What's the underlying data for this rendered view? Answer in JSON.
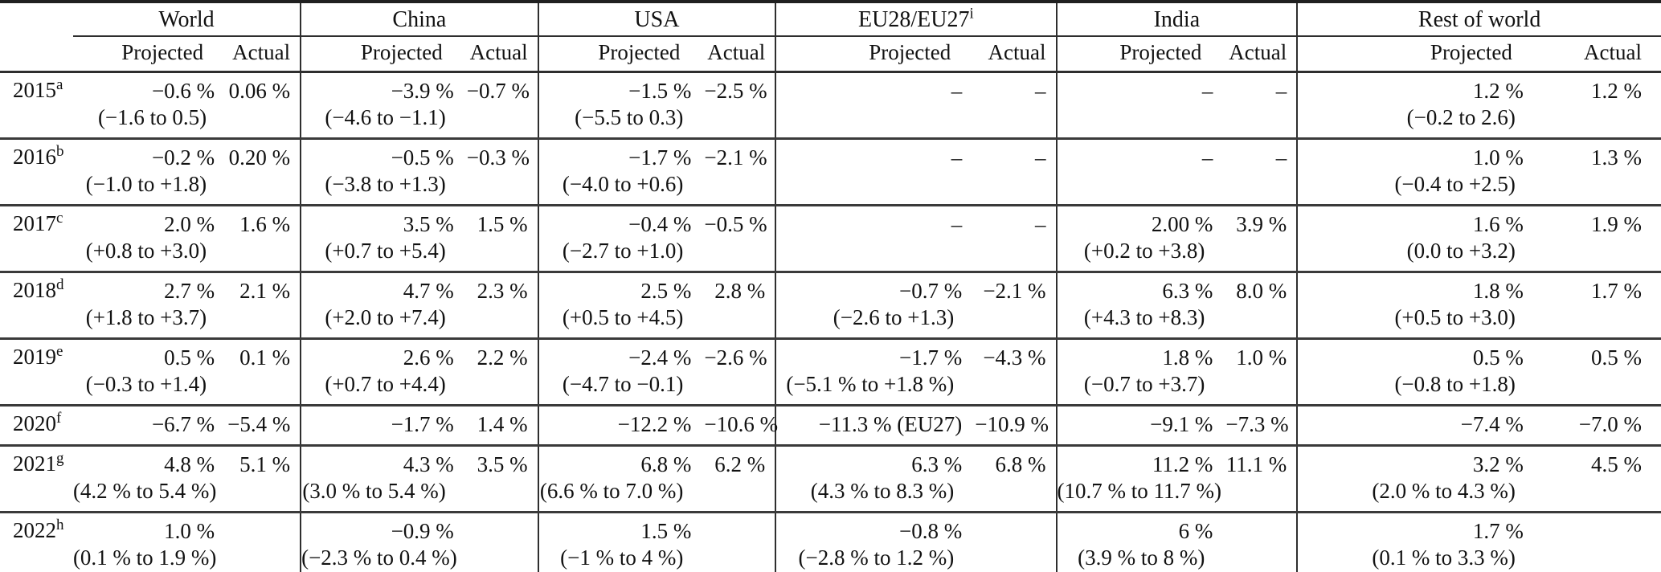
{
  "table": {
    "corner": "",
    "groups": [
      {
        "label": "World",
        "sup": ""
      },
      {
        "label": "China",
        "sup": ""
      },
      {
        "label": "USA",
        "sup": ""
      },
      {
        "label": "EU28/EU27",
        "sup": "i"
      },
      {
        "label": "India",
        "sup": ""
      },
      {
        "label": "Rest of world",
        "sup": ""
      }
    ],
    "subheaders": {
      "projected": "Projected",
      "actual": "Actual"
    },
    "rows": [
      {
        "year": "2015",
        "sup": "a",
        "cells": [
          {
            "proj": "−0.6 %",
            "range": "(−1.6 to 0.5)",
            "act": "0.06 %"
          },
          {
            "proj": "−3.9 %",
            "range": "(−4.6 to −1.1)",
            "act": "−0.7 %"
          },
          {
            "proj": "−1.5 %",
            "range": "(−5.5 to 0.3)",
            "act": "−2.5 %"
          },
          {
            "proj": "–",
            "range": "",
            "act": "–"
          },
          {
            "proj": "–",
            "range": "",
            "act": "–"
          },
          {
            "proj": "1.2 %",
            "range": "(−0.2 to 2.6)",
            "act": "1.2 %"
          }
        ]
      },
      {
        "year": "2016",
        "sup": "b",
        "cells": [
          {
            "proj": "−0.2 %",
            "range": "(−1.0 to +1.8)",
            "act": "0.20 %"
          },
          {
            "proj": "−0.5 %",
            "range": "(−3.8 to +1.3)",
            "act": "−0.3 %"
          },
          {
            "proj": "−1.7 %",
            "range": "(−4.0 to +0.6)",
            "act": "−2.1 %"
          },
          {
            "proj": "–",
            "range": "",
            "act": "–"
          },
          {
            "proj": "–",
            "range": "",
            "act": "–"
          },
          {
            "proj": "1.0 %",
            "range": "(−0.4 to +2.5)",
            "act": "1.3 %"
          }
        ]
      },
      {
        "year": "2017",
        "sup": "c",
        "cells": [
          {
            "proj": "2.0 %",
            "range": "(+0.8 to +3.0)",
            "act": "1.6 %"
          },
          {
            "proj": "3.5 %",
            "range": "(+0.7 to +5.4)",
            "act": "1.5 %"
          },
          {
            "proj": "−0.4 %",
            "range": "(−2.7 to +1.0)",
            "act": "−0.5 %"
          },
          {
            "proj": "–",
            "range": "",
            "act": "–"
          },
          {
            "proj": "2.00 %",
            "range": "(+0.2 to +3.8)",
            "act": "3.9 %"
          },
          {
            "proj": "1.6 %",
            "range": "(0.0 to +3.2)",
            "act": "1.9 %"
          }
        ]
      },
      {
        "year": "2018",
        "sup": "d",
        "cells": [
          {
            "proj": "2.7 %",
            "range": "(+1.8 to +3.7)",
            "act": "2.1 %"
          },
          {
            "proj": "4.7 %",
            "range": "(+2.0 to +7.4)",
            "act": "2.3 %"
          },
          {
            "proj": "2.5 %",
            "range": "(+0.5 to +4.5)",
            "act": "2.8 %"
          },
          {
            "proj": "−0.7 %",
            "range": "(−2.6 to +1.3)",
            "act": "−2.1 %"
          },
          {
            "proj": "6.3 %",
            "range": "(+4.3 to +8.3)",
            "act": "8.0 %"
          },
          {
            "proj": "1.8 %",
            "range": "(+0.5 to +3.0)",
            "act": "1.7 %"
          }
        ]
      },
      {
        "year": "2019",
        "sup": "e",
        "cells": [
          {
            "proj": "0.5 %",
            "range": "(−0.3 to +1.4)",
            "act": "0.1 %"
          },
          {
            "proj": "2.6 %",
            "range": "(+0.7 to +4.4)",
            "act": "2.2 %"
          },
          {
            "proj": "−2.4 %",
            "range": "(−4.7 to −0.1)",
            "act": "−2.6 %"
          },
          {
            "proj": "−1.7 %",
            "range": "(−5.1 % to +1.8 %)",
            "act": "−4.3 %"
          },
          {
            "proj": "1.8 %",
            "range": "(−0.7 to +3.7)",
            "act": "1.0 %"
          },
          {
            "proj": "0.5 %",
            "range": "(−0.8 to +1.8)",
            "act": "0.5 %"
          }
        ]
      },
      {
        "year": "2020",
        "sup": "f",
        "cells": [
          {
            "proj": "−6.7 %",
            "range": "",
            "act": "−5.4 %"
          },
          {
            "proj": "−1.7 %",
            "range": "",
            "act": "1.4 %"
          },
          {
            "proj": "−12.2 %",
            "range": "",
            "act": "−10.6 %"
          },
          {
            "proj": "−11.3 % (EU27)",
            "range": "",
            "act": "−10.9 %"
          },
          {
            "proj": "−9.1 %",
            "range": "",
            "act": "−7.3 %"
          },
          {
            "proj": "−7.4 %",
            "range": "",
            "act": "−7.0 %"
          }
        ]
      },
      {
        "year": "2021",
        "sup": "g",
        "cells": [
          {
            "proj": "4.8 %",
            "range": "(4.2 % to 5.4 %)",
            "act": "5.1 %"
          },
          {
            "proj": "4.3 %",
            "range": "(3.0 % to 5.4 %)",
            "act": "3.5 %"
          },
          {
            "proj": "6.8 %",
            "range": "(6.6 % to 7.0 %)",
            "act": "6.2 %"
          },
          {
            "proj": "6.3 %",
            "range": "(4.3 % to 8.3 %)",
            "act": "6.8 %"
          },
          {
            "proj": "11.2 %",
            "range": "(10.7 % to 11.7 %)",
            "act": "11.1 %"
          },
          {
            "proj": "3.2 %",
            "range": "(2.0 % to 4.3 %)",
            "act": "4.5 %"
          }
        ]
      },
      {
        "year": "2022",
        "sup": "h",
        "cells": [
          {
            "proj": "1.0 %",
            "range": "(0.1 % to 1.9 %)",
            "act": ""
          },
          {
            "proj": "−0.9 %",
            "range": "(−2.3 % to 0.4 %)",
            "act": ""
          },
          {
            "proj": "1.5 %",
            "range": "(−1 % to 4 %)",
            "act": ""
          },
          {
            "proj": "−0.8 %",
            "range": "(−2.8 % to 1.2 %)",
            "act": ""
          },
          {
            "proj": "6 %",
            "range": "(3.9 % to 8 %)",
            "act": ""
          },
          {
            "proj": "1.7 %",
            "range": "(0.1 % to 3.3 %)",
            "act": ""
          }
        ]
      }
    ]
  }
}
